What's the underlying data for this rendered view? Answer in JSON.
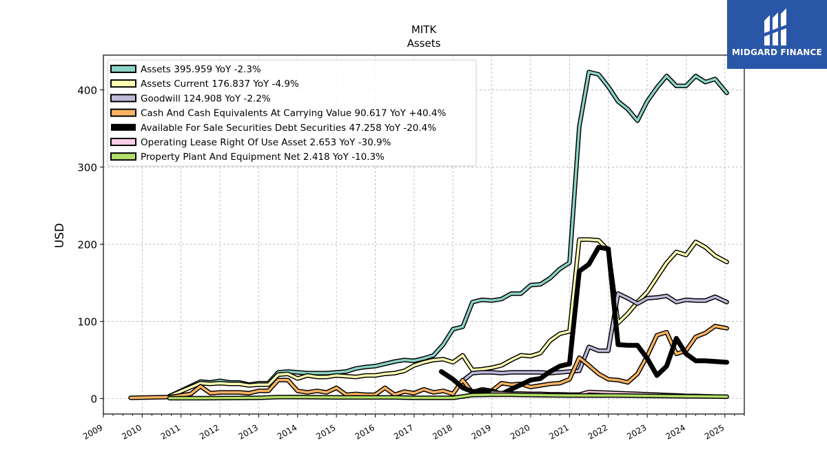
{
  "brand": {
    "name": "MIDGARD FINANCE",
    "color": "#2a56a8"
  },
  "chart_data": {
    "type": "line",
    "title": "MITK",
    "subtitle": "Assets",
    "xlabel": "",
    "ylabel": "USD",
    "xlim": [
      2009.0,
      2025.5
    ],
    "ylim": [
      -20,
      445
    ],
    "xticks": [
      "2009",
      "2010",
      "2011",
      "2012",
      "2013",
      "2014",
      "2015",
      "2016",
      "2017",
      "2018",
      "2019",
      "2020",
      "2021",
      "2022",
      "2023",
      "2024",
      "2025"
    ],
    "yticks": [
      0,
      100,
      200,
      300,
      400
    ],
    "grid": true,
    "legend_position": "top-left",
    "series": [
      {
        "name": "Assets",
        "legend": "Assets  395.959 YoY -2.3%",
        "color": "#8dd3c7",
        "width": 3.5,
        "points": [
          [
            2010.7,
            3
          ],
          [
            2011.5,
            22
          ],
          [
            2011.75,
            21
          ],
          [
            2012.0,
            23
          ],
          [
            2012.25,
            21
          ],
          [
            2012.5,
            21
          ],
          [
            2012.75,
            18
          ],
          [
            2013.0,
            20
          ],
          [
            2013.25,
            20
          ],
          [
            2013.5,
            34
          ],
          [
            2013.75,
            35
          ],
          [
            2014.0,
            34
          ],
          [
            2014.25,
            33
          ],
          [
            2014.5,
            33
          ],
          [
            2014.75,
            33
          ],
          [
            2015.0,
            34
          ],
          [
            2015.25,
            35
          ],
          [
            2015.5,
            39
          ],
          [
            2015.75,
            41
          ],
          [
            2016.0,
            42
          ],
          [
            2016.25,
            45
          ],
          [
            2016.5,
            48
          ],
          [
            2016.75,
            50
          ],
          [
            2017.0,
            49
          ],
          [
            2017.25,
            52
          ],
          [
            2017.5,
            56
          ],
          [
            2017.75,
            70
          ],
          [
            2018.0,
            90
          ],
          [
            2018.25,
            93
          ],
          [
            2018.5,
            125
          ],
          [
            2018.75,
            128
          ],
          [
            2019.0,
            127
          ],
          [
            2019.25,
            129
          ],
          [
            2019.5,
            136
          ],
          [
            2019.75,
            136
          ],
          [
            2020.0,
            147
          ],
          [
            2020.25,
            148
          ],
          [
            2020.5,
            156
          ],
          [
            2020.75,
            168
          ],
          [
            2021.0,
            176
          ],
          [
            2021.25,
            352
          ],
          [
            2021.5,
            423
          ],
          [
            2021.75,
            420
          ],
          [
            2022.0,
            404
          ],
          [
            2022.25,
            385
          ],
          [
            2022.5,
            375
          ],
          [
            2022.75,
            360
          ],
          [
            2023.0,
            385
          ],
          [
            2023.25,
            403
          ],
          [
            2023.5,
            418
          ],
          [
            2023.75,
            405
          ],
          [
            2024.0,
            405
          ],
          [
            2024.25,
            418
          ],
          [
            2024.5,
            410
          ],
          [
            2024.75,
            414
          ],
          [
            2025.05,
            396
          ]
        ]
      },
      {
        "name": "Assets Current",
        "legend": "Assets Current  176.837 YoY -4.9%",
        "color": "#ffffb3",
        "width": 3.5,
        "points": [
          [
            2010.7,
            3
          ],
          [
            2011.5,
            20
          ],
          [
            2011.75,
            19
          ],
          [
            2012.0,
            20
          ],
          [
            2012.25,
            19
          ],
          [
            2012.5,
            19
          ],
          [
            2012.75,
            17
          ],
          [
            2013.0,
            18
          ],
          [
            2013.25,
            18
          ],
          [
            2013.5,
            31
          ],
          [
            2013.75,
            32
          ],
          [
            2014.0,
            26
          ],
          [
            2014.25,
            30
          ],
          [
            2014.5,
            28
          ],
          [
            2014.75,
            28
          ],
          [
            2015.0,
            30
          ],
          [
            2015.25,
            29
          ],
          [
            2015.5,
            28
          ],
          [
            2015.75,
            30
          ],
          [
            2016.0,
            30
          ],
          [
            2016.25,
            32
          ],
          [
            2016.5,
            33
          ],
          [
            2016.75,
            36
          ],
          [
            2017.0,
            43
          ],
          [
            2017.25,
            47
          ],
          [
            2017.5,
            50
          ],
          [
            2017.75,
            51
          ],
          [
            2018.0,
            47
          ],
          [
            2018.25,
            56
          ],
          [
            2018.5,
            37
          ],
          [
            2018.75,
            38
          ],
          [
            2019.0,
            40
          ],
          [
            2019.25,
            43
          ],
          [
            2019.5,
            50
          ],
          [
            2019.75,
            56
          ],
          [
            2020.0,
            55
          ],
          [
            2020.25,
            59
          ],
          [
            2020.5,
            75
          ],
          [
            2020.75,
            84
          ],
          [
            2021.0,
            87
          ],
          [
            2021.25,
            206
          ],
          [
            2021.5,
            206
          ],
          [
            2021.75,
            205
          ],
          [
            2022.0,
            192
          ],
          [
            2022.25,
            98
          ],
          [
            2022.5,
            110
          ],
          [
            2022.75,
            125
          ],
          [
            2023.0,
            138
          ],
          [
            2023.25,
            157
          ],
          [
            2023.5,
            176
          ],
          [
            2023.75,
            190
          ],
          [
            2024.0,
            186
          ],
          [
            2024.25,
            203
          ],
          [
            2024.5,
            196
          ],
          [
            2024.75,
            185
          ],
          [
            2025.05,
            177
          ]
        ]
      },
      {
        "name": "Goodwill",
        "legend": "Goodwill  124.908 YoY -2.2%",
        "color": "#bebada",
        "width": 3.5,
        "points": [
          [
            2018.3,
            25
          ],
          [
            2018.5,
            33
          ],
          [
            2018.75,
            34
          ],
          [
            2019.0,
            34
          ],
          [
            2019.25,
            33
          ],
          [
            2019.5,
            34
          ],
          [
            2019.75,
            34
          ],
          [
            2020.0,
            34
          ],
          [
            2020.25,
            34
          ],
          [
            2020.5,
            33
          ],
          [
            2020.75,
            34
          ],
          [
            2021.0,
            35
          ],
          [
            2021.25,
            36
          ],
          [
            2021.5,
            67
          ],
          [
            2021.75,
            62
          ],
          [
            2022.0,
            62
          ],
          [
            2022.25,
            136
          ],
          [
            2022.5,
            130
          ],
          [
            2022.75,
            123
          ],
          [
            2023.0,
            130
          ],
          [
            2023.25,
            131
          ],
          [
            2023.5,
            133
          ],
          [
            2023.75,
            125
          ],
          [
            2024.0,
            128
          ],
          [
            2024.25,
            127
          ],
          [
            2024.5,
            127
          ],
          [
            2024.75,
            132
          ],
          [
            2025.05,
            125
          ]
        ]
      },
      {
        "name": "Cash And Cash Equivalents At Carrying Value",
        "legend": "Cash And Cash Equivalents At Carrying Value  90.617 YoY +40.4%",
        "color": "#fdb462",
        "width": 3.5,
        "points": [
          [
            2009.7,
            1
          ],
          [
            2010.7,
            2
          ],
          [
            2011.25,
            6
          ],
          [
            2011.5,
            16
          ],
          [
            2011.75,
            7
          ],
          [
            2012.0,
            8
          ],
          [
            2012.25,
            8
          ],
          [
            2012.5,
            8
          ],
          [
            2012.75,
            7
          ],
          [
            2013.0,
            10
          ],
          [
            2013.25,
            10
          ],
          [
            2013.5,
            24
          ],
          [
            2013.75,
            24
          ],
          [
            2014.0,
            10
          ],
          [
            2014.25,
            8
          ],
          [
            2014.5,
            10
          ],
          [
            2014.75,
            8
          ],
          [
            2015.0,
            14
          ],
          [
            2015.25,
            5
          ],
          [
            2015.5,
            6
          ],
          [
            2015.75,
            5
          ],
          [
            2016.0,
            5
          ],
          [
            2016.25,
            14
          ],
          [
            2016.5,
            5
          ],
          [
            2016.75,
            9
          ],
          [
            2017.0,
            7
          ],
          [
            2017.25,
            12
          ],
          [
            2017.5,
            8
          ],
          [
            2017.75,
            10
          ],
          [
            2018.0,
            6
          ],
          [
            2018.25,
            24
          ],
          [
            2018.5,
            8
          ],
          [
            2018.75,
            12
          ],
          [
            2019.0,
            10
          ],
          [
            2019.25,
            20
          ],
          [
            2019.5,
            18
          ],
          [
            2019.75,
            19
          ],
          [
            2020.0,
            15
          ],
          [
            2020.25,
            17
          ],
          [
            2020.5,
            19
          ],
          [
            2020.75,
            20
          ],
          [
            2021.0,
            25
          ],
          [
            2021.25,
            53
          ],
          [
            2021.5,
            43
          ],
          [
            2021.75,
            32
          ],
          [
            2022.0,
            25
          ],
          [
            2022.25,
            24
          ],
          [
            2022.5,
            21
          ],
          [
            2022.75,
            32
          ],
          [
            2023.0,
            55
          ],
          [
            2023.25,
            82
          ],
          [
            2023.5,
            86
          ],
          [
            2023.75,
            58
          ],
          [
            2024.0,
            62
          ],
          [
            2024.25,
            80
          ],
          [
            2024.5,
            85
          ],
          [
            2024.75,
            94
          ],
          [
            2025.05,
            91
          ]
        ]
      },
      {
        "name": "Available For Sale Securities Debt Securities",
        "legend": "Available For Sale Securities Debt Securities  47.258 YoY -20.4%",
        "color": "#000000",
        "width": 7,
        "points": [
          [
            2017.7,
            35
          ],
          [
            2018.0,
            25
          ],
          [
            2018.25,
            14
          ],
          [
            2018.5,
            9
          ],
          [
            2018.75,
            10
          ],
          [
            2019.0,
            10
          ],
          [
            2019.25,
            6
          ],
          [
            2019.5,
            12
          ],
          [
            2019.75,
            18
          ],
          [
            2020.0,
            24
          ],
          [
            2020.25,
            26
          ],
          [
            2020.5,
            35
          ],
          [
            2020.75,
            42
          ],
          [
            2021.0,
            45
          ],
          [
            2021.25,
            165
          ],
          [
            2021.5,
            174
          ],
          [
            2021.75,
            196
          ],
          [
            2022.0,
            194
          ],
          [
            2022.25,
            70
          ],
          [
            2022.5,
            69
          ],
          [
            2022.75,
            69
          ],
          [
            2023.0,
            52
          ],
          [
            2023.25,
            30
          ],
          [
            2023.5,
            42
          ],
          [
            2023.75,
            78
          ],
          [
            2024.0,
            58
          ],
          [
            2024.25,
            49
          ],
          [
            2024.5,
            49
          ],
          [
            2024.75,
            48
          ],
          [
            2025.05,
            47
          ]
        ]
      },
      {
        "name": "Operating Lease Right Of Use Asset",
        "legend": "Operating Lease Right Of Use Asset  2.653 YoY -30.9%",
        "color": "#fccde5",
        "width": 2.5,
        "points": [
          [
            2019.0,
            8
          ],
          [
            2019.25,
            7.5
          ],
          [
            2019.5,
            7
          ],
          [
            2019.75,
            7
          ],
          [
            2020.0,
            6.5
          ],
          [
            2020.25,
            6.5
          ],
          [
            2020.5,
            6
          ],
          [
            2020.75,
            6
          ],
          [
            2021.0,
            5.5
          ],
          [
            2021.25,
            5.5
          ],
          [
            2021.5,
            9
          ],
          [
            2021.75,
            8.5
          ],
          [
            2022.0,
            8
          ],
          [
            2022.25,
            7.5
          ],
          [
            2022.5,
            7
          ],
          [
            2022.75,
            6.5
          ],
          [
            2023.0,
            6
          ],
          [
            2023.25,
            5.5
          ],
          [
            2023.5,
            5
          ],
          [
            2023.75,
            4.5
          ],
          [
            2024.0,
            4
          ],
          [
            2024.25,
            3.8
          ],
          [
            2024.5,
            3.5
          ],
          [
            2024.75,
            3
          ],
          [
            2025.05,
            2.7
          ]
        ]
      },
      {
        "name": "Property Plant And Equipment Net",
        "legend": "Property Plant And Equipment Net  2.418 YoY -10.3%",
        "color": "#b3de69",
        "width": 3.5,
        "points": [
          [
            2010.7,
            0.5
          ],
          [
            2011.5,
            0.5
          ],
          [
            2012.5,
            0.8
          ],
          [
            2013.0,
            1
          ],
          [
            2013.5,
            2
          ],
          [
            2014.0,
            2
          ],
          [
            2014.5,
            1.8
          ],
          [
            2015.0,
            1.5
          ],
          [
            2015.5,
            1.5
          ],
          [
            2016.0,
            1.5
          ],
          [
            2016.5,
            1.5
          ],
          [
            2017.0,
            1
          ],
          [
            2017.5,
            1
          ],
          [
            2018.0,
            1
          ],
          [
            2018.5,
            4.5
          ],
          [
            2019.0,
            5
          ],
          [
            2019.5,
            5
          ],
          [
            2020.0,
            4.5
          ],
          [
            2020.5,
            4.2
          ],
          [
            2021.0,
            4
          ],
          [
            2021.5,
            4
          ],
          [
            2022.0,
            4
          ],
          [
            2022.5,
            3.8
          ],
          [
            2023.0,
            3.5
          ],
          [
            2023.5,
            3.2
          ],
          [
            2024.0,
            3
          ],
          [
            2024.5,
            2.8
          ],
          [
            2025.05,
            2.4
          ]
        ]
      }
    ]
  }
}
